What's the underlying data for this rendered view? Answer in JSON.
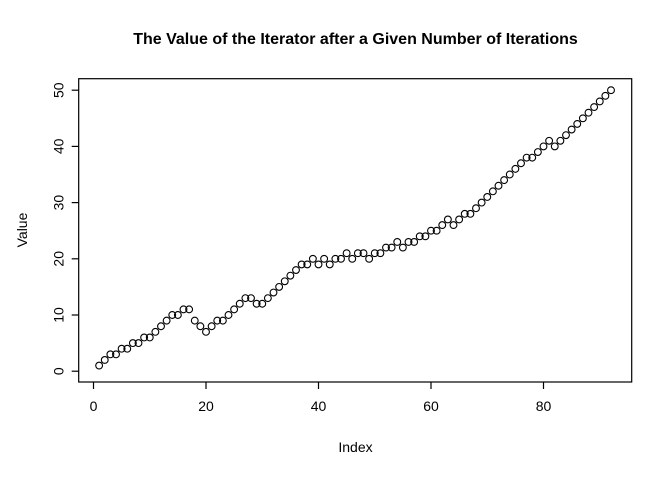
{
  "chart_data": {
    "type": "scatter",
    "title": "The Value of the Iterator after a Given Number of Iterations",
    "xlabel": "Index",
    "ylabel": "Value",
    "point_style": "open-circle",
    "grid": false,
    "legend": null,
    "x_start": 1,
    "x": [
      1,
      2,
      3,
      4,
      5,
      6,
      7,
      8,
      9,
      10,
      11,
      12,
      13,
      14,
      15,
      16,
      17,
      18,
      19,
      20,
      21,
      22,
      23,
      24,
      25,
      26,
      27,
      28,
      29,
      30,
      31,
      32,
      33,
      34,
      35,
      36,
      37,
      38,
      39,
      40,
      41,
      42,
      43,
      44,
      45,
      46,
      47,
      48,
      49,
      50,
      51,
      52,
      53,
      54,
      55,
      56,
      57,
      58,
      59,
      60,
      61,
      62,
      63,
      64,
      65,
      66,
      67,
      68,
      69,
      70,
      71,
      72,
      73,
      74,
      75,
      76,
      77,
      78,
      79,
      80,
      81,
      82,
      83,
      84,
      85,
      86,
      87,
      88,
      89,
      90,
      91,
      92
    ],
    "values": [
      1,
      2,
      3,
      3,
      4,
      4,
      5,
      5,
      6,
      6,
      7,
      8,
      9,
      10,
      10,
      11,
      11,
      9,
      8,
      7,
      8,
      9,
      9,
      10,
      11,
      12,
      13,
      13,
      12,
      12,
      13,
      14,
      15,
      16,
      17,
      18,
      19,
      19,
      20,
      19,
      20,
      19,
      20,
      20,
      21,
      20,
      21,
      21,
      20,
      21,
      21,
      22,
      22,
      23,
      22,
      23,
      23,
      24,
      24,
      25,
      25,
      26,
      27,
      26,
      27,
      28,
      28,
      29,
      30,
      31,
      32,
      33,
      34,
      35,
      36,
      37,
      38,
      38,
      39,
      40,
      41,
      40,
      41,
      42,
      43,
      44,
      45,
      46,
      47,
      48,
      49,
      50
    ],
    "xticks": [
      0,
      20,
      40,
      60,
      80
    ],
    "yticks": [
      0,
      10,
      20,
      30,
      40,
      50
    ],
    "xlim": [
      -3,
      96
    ],
    "ylim": [
      -2,
      52
    ],
    "colors": {
      "points": "#000000",
      "axis": "#000000",
      "text": "#000000",
      "background": "#ffffff"
    }
  }
}
